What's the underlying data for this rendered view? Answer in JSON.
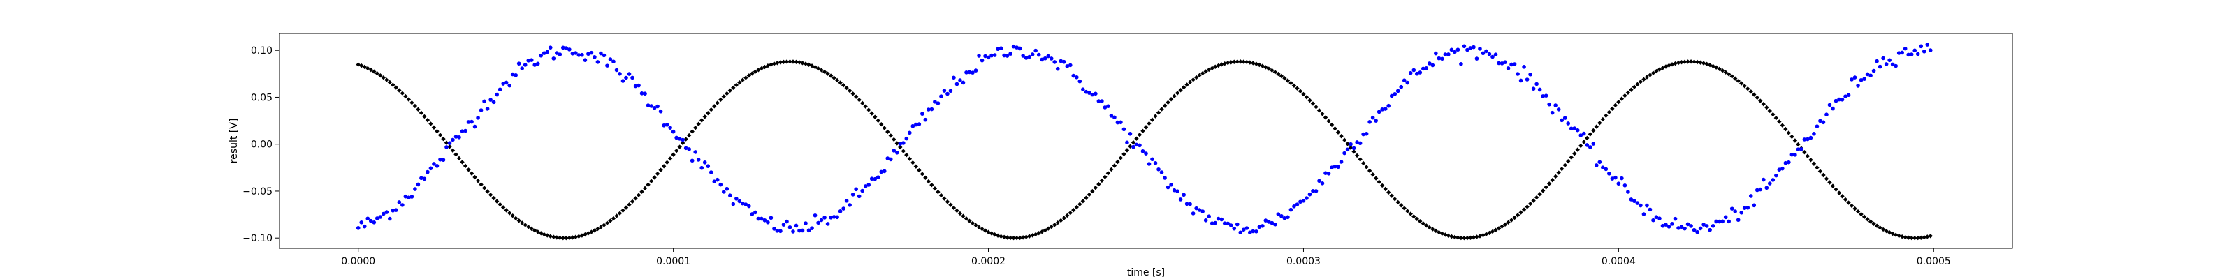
{
  "chart_data": {
    "type": "scatter",
    "title": "",
    "xlabel": "time [s]",
    "ylabel": "result [V]",
    "xlim": [
      -2.5e-05,
      0.000525
    ],
    "ylim": [
      -0.111,
      0.118
    ],
    "x_ticks": [
      0.0,
      0.0001,
      0.0002,
      0.0003,
      0.0004,
      0.0005
    ],
    "x_tick_labels": [
      "0.0000",
      "0.0001",
      "0.0002",
      "0.0003",
      "0.0004",
      "0.0005"
    ],
    "y_ticks": [
      -0.1,
      -0.05,
      0.0,
      0.05,
      0.1
    ],
    "y_tick_labels": [
      "−0.10",
      "−0.05",
      "0.00",
      "0.05",
      "0.10"
    ],
    "grid": false,
    "x_range": [
      0.0,
      0.000499
    ],
    "series": [
      {
        "color": "#000000",
        "marker": "diamond",
        "model": "sine",
        "offset": -0.006,
        "amplitude": 0.094,
        "frequency_hz": 7000,
        "phase_rad": 1.83,
        "noise": 0.0,
        "n_points": 500
      },
      {
        "color": "#0000ff",
        "marker": "dot",
        "model": "sine",
        "offset": 0.005,
        "amplitude": 0.095,
        "frequency_hz": 7000,
        "phase_rad": -1.37,
        "noise": 0.004,
        "n_points": 500
      }
    ]
  }
}
